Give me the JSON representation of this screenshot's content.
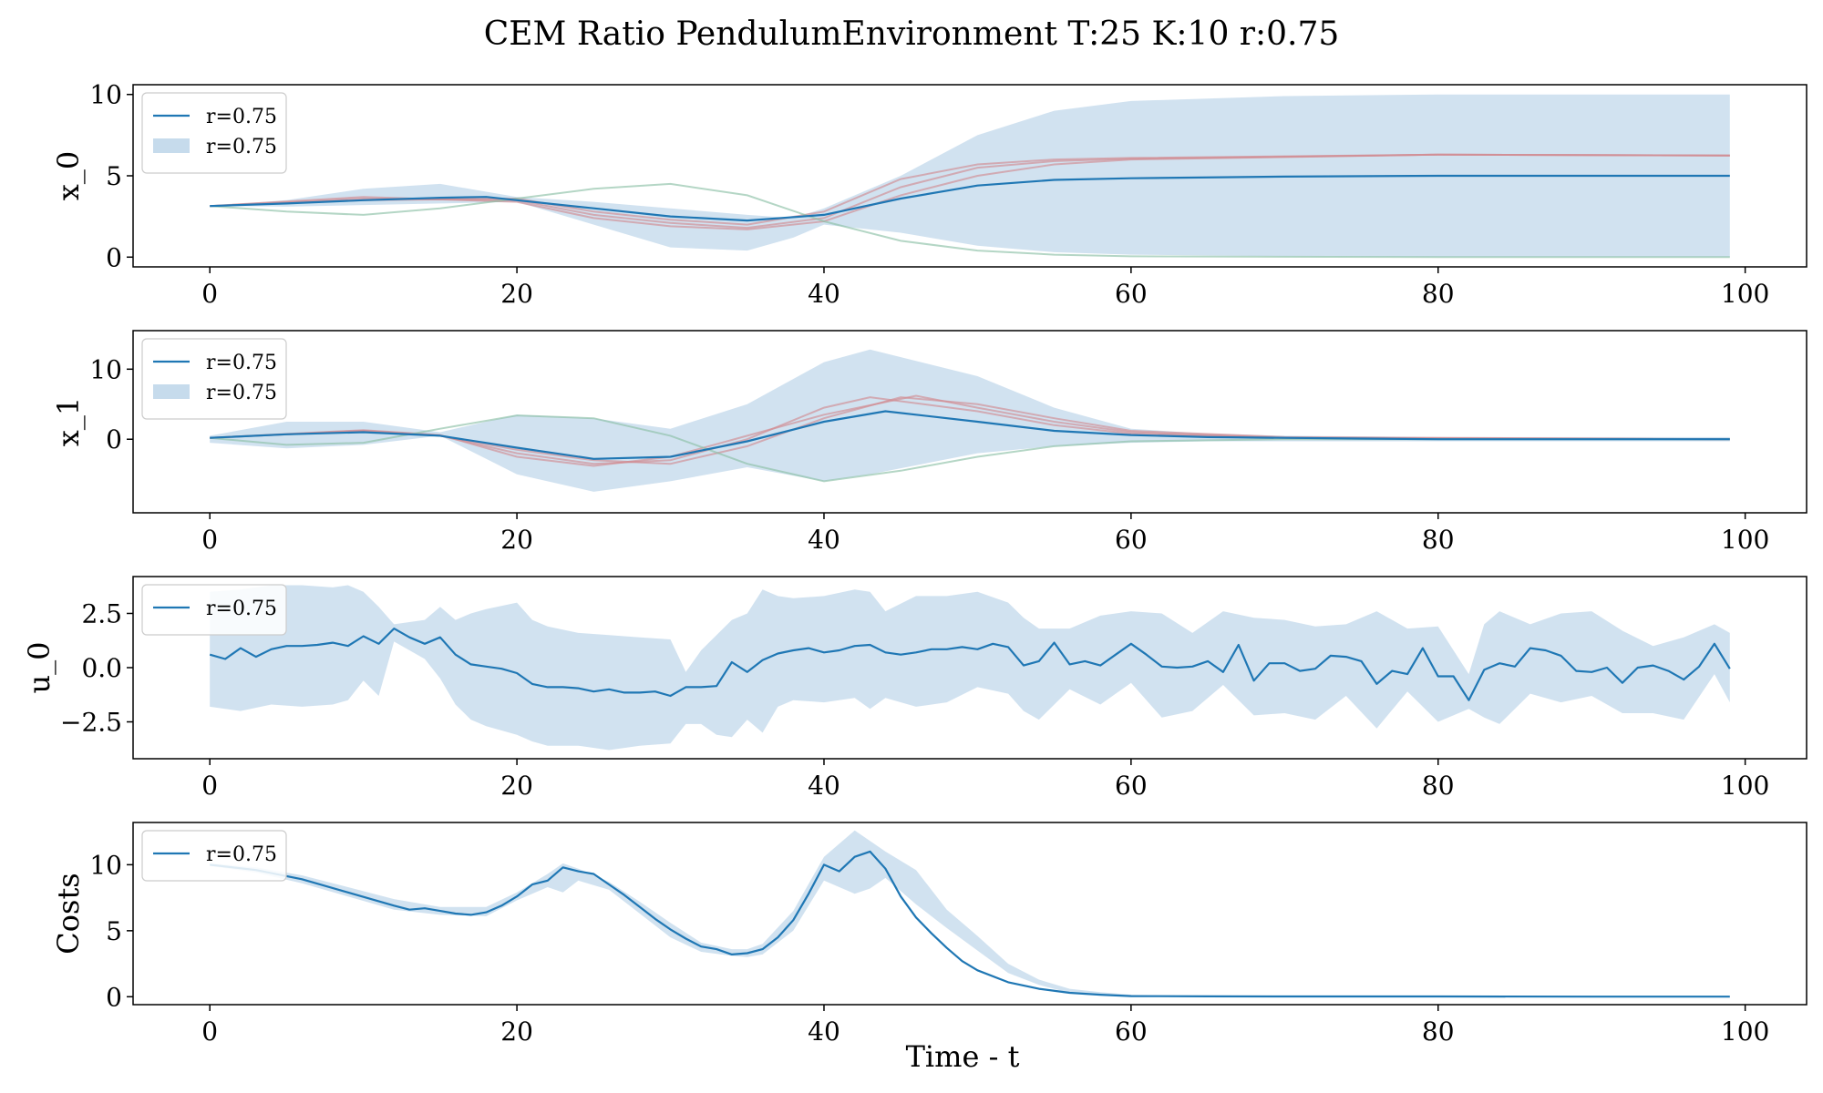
{
  "figure": {
    "title": "CEM Ratio PendulumEnvironment T:25 K:10 r:0.75",
    "xlabel": "Time - t"
  },
  "colors": {
    "mean_line": "#1f77b4",
    "band_fill": "#c6dbec",
    "sample_red": "#d18c92",
    "sample_green": "#8cc0a6",
    "axis": "#000000"
  },
  "chart_data": [
    {
      "type": "line",
      "ylabel": "x_0",
      "xlim": [
        -5,
        104
      ],
      "ylim": [
        -0.6,
        10.6
      ],
      "xticks": [
        0,
        20,
        40,
        60,
        80,
        100
      ],
      "yticks": [
        0,
        5,
        10
      ],
      "yticklabels": [
        "0",
        "5",
        "10"
      ],
      "legend": {
        "placement": "upper-left",
        "entries": [
          {
            "kind": "line",
            "label": "r=0.75"
          },
          {
            "kind": "band",
            "label": "r=0.75"
          }
        ]
      },
      "mean": {
        "name": "r=0.75",
        "x": [
          0,
          5,
          10,
          15,
          18,
          20,
          25,
          30,
          35,
          40,
          45,
          50,
          55,
          60,
          70,
          80,
          90,
          99
        ],
        "y": [
          3.14,
          3.3,
          3.5,
          3.65,
          3.7,
          3.5,
          3.0,
          2.5,
          2.25,
          2.6,
          3.6,
          4.4,
          4.75,
          4.85,
          4.95,
          5.0,
          5.0,
          5.0
        ]
      },
      "band": {
        "name": "r=0.75",
        "x": [
          0,
          5,
          10,
          15,
          20,
          25,
          30,
          35,
          38,
          40,
          45,
          50,
          55,
          60,
          70,
          80,
          90,
          99
        ],
        "upper": [
          3.14,
          3.5,
          4.2,
          4.5,
          3.7,
          3.4,
          3.0,
          2.6,
          2.4,
          3.0,
          5.0,
          7.5,
          9.0,
          9.6,
          9.9,
          10.0,
          10.0,
          10.0
        ],
        "lower": [
          3.14,
          3.1,
          3.2,
          3.3,
          3.4,
          2.0,
          0.6,
          0.4,
          1.2,
          2.0,
          1.5,
          0.7,
          0.3,
          0.15,
          0.05,
          0.0,
          0.0,
          0.0
        ]
      },
      "samples": [
        {
          "color": "red",
          "x": [
            0,
            10,
            20,
            25,
            30,
            35,
            40,
            45,
            50,
            55,
            60,
            80,
            99
          ],
          "y": [
            3.14,
            3.6,
            3.5,
            2.6,
            2.1,
            1.8,
            2.4,
            4.3,
            5.5,
            5.9,
            6.05,
            6.3,
            6.25
          ]
        },
        {
          "color": "red",
          "x": [
            0,
            10,
            20,
            25,
            30,
            35,
            40,
            45,
            50,
            55,
            60,
            80,
            99
          ],
          "y": [
            3.14,
            3.7,
            3.4,
            2.4,
            1.9,
            1.7,
            2.2,
            3.8,
            5.0,
            5.7,
            6.0,
            6.3,
            6.25
          ]
        },
        {
          "color": "red",
          "x": [
            0,
            10,
            20,
            25,
            30,
            35,
            40,
            45,
            50,
            55,
            60,
            80,
            99
          ],
          "y": [
            3.14,
            3.5,
            3.6,
            2.8,
            2.3,
            2.0,
            2.8,
            4.8,
            5.7,
            6.0,
            6.1,
            6.3,
            6.25
          ]
        },
        {
          "color": "green",
          "x": [
            0,
            5,
            10,
            15,
            20,
            25,
            30,
            35,
            40,
            45,
            50,
            55,
            60,
            80,
            99
          ],
          "y": [
            3.14,
            2.8,
            2.6,
            3.0,
            3.6,
            4.2,
            4.5,
            3.8,
            2.2,
            1.0,
            0.4,
            0.15,
            0.05,
            0.0,
            0.0
          ]
        }
      ]
    },
    {
      "type": "line",
      "ylabel": "x_1",
      "xlim": [
        -5,
        104
      ],
      "ylim": [
        -10.5,
        15.5
      ],
      "xticks": [
        0,
        20,
        40,
        60,
        80,
        100
      ],
      "yticks": [
        0,
        10
      ],
      "yticklabels": [
        "0",
        "10"
      ],
      "legend": {
        "placement": "upper-left",
        "entries": [
          {
            "kind": "line",
            "label": "r=0.75"
          },
          {
            "kind": "band",
            "label": "r=0.75"
          }
        ]
      },
      "mean": {
        "name": "r=0.75",
        "x": [
          0,
          5,
          10,
          15,
          20,
          25,
          30,
          35,
          40,
          44,
          50,
          55,
          60,
          65,
          70,
          75,
          80,
          85,
          90,
          95,
          99
        ],
        "y": [
          0.2,
          0.7,
          1.0,
          0.5,
          -1.2,
          -2.8,
          -2.5,
          -0.3,
          2.5,
          4.0,
          2.5,
          1.2,
          0.6,
          0.3,
          0.2,
          0.1,
          0.0,
          0.0,
          0.0,
          0.0,
          0.0
        ]
      },
      "band": {
        "name": "r=0.75",
        "x": [
          0,
          5,
          10,
          15,
          20,
          25,
          30,
          35,
          40,
          43,
          50,
          55,
          60,
          65,
          70,
          80,
          90,
          99
        ],
        "upper": [
          0.5,
          2.5,
          2.5,
          1.0,
          3.5,
          3.0,
          1.5,
          5.0,
          11.0,
          12.8,
          9.0,
          4.5,
          1.5,
          0.8,
          0.5,
          0.3,
          0.3,
          0.3
        ],
        "lower": [
          -0.5,
          -1.3,
          -0.8,
          0.5,
          -5.0,
          -7.5,
          -6.0,
          -4.0,
          -6.0,
          -5.0,
          -2.0,
          -1.0,
          -0.5,
          -0.3,
          -0.3,
          -0.3,
          -0.3,
          -0.3
        ]
      },
      "samples": [
        {
          "color": "red",
          "x": [
            0,
            10,
            15,
            20,
            25,
            30,
            35,
            40,
            43,
            50,
            55,
            60,
            70,
            99
          ],
          "y": [
            0.2,
            1.2,
            0.5,
            -2.0,
            -3.5,
            -3.0,
            0.0,
            4.5,
            6.0,
            4.0,
            2.0,
            0.8,
            0.2,
            0.0
          ]
        },
        {
          "color": "red",
          "x": [
            0,
            10,
            15,
            20,
            25,
            30,
            35,
            40,
            45,
            50,
            55,
            60,
            70,
            99
          ],
          "y": [
            0.2,
            1.2,
            0.5,
            -1.5,
            -3.0,
            -3.5,
            -1.0,
            3.0,
            6.0,
            5.0,
            3.0,
            1.2,
            0.3,
            0.0
          ]
        },
        {
          "color": "red",
          "x": [
            0,
            10,
            15,
            20,
            25,
            30,
            35,
            40,
            46,
            50,
            55,
            60,
            70,
            99
          ],
          "y": [
            0.2,
            1.3,
            0.6,
            -2.5,
            -3.8,
            -2.5,
            0.5,
            3.5,
            6.2,
            4.5,
            2.5,
            1.0,
            0.2,
            0.0
          ]
        },
        {
          "color": "green",
          "x": [
            0,
            5,
            10,
            15,
            20,
            25,
            30,
            35,
            40,
            45,
            50,
            55,
            60,
            70,
            99
          ],
          "y": [
            0.2,
            -0.8,
            -0.5,
            1.5,
            3.4,
            3.0,
            0.5,
            -3.5,
            -6.0,
            -4.5,
            -2.5,
            -1.0,
            -0.3,
            0.0,
            0.0
          ]
        }
      ]
    },
    {
      "type": "line",
      "ylabel": "u_0",
      "xlim": [
        -5,
        104
      ],
      "ylim": [
        -4.2,
        4.2
      ],
      "xticks": [
        0,
        20,
        40,
        60,
        80,
        100
      ],
      "yticks": [
        2.5,
        0.0,
        -2.5
      ],
      "yticklabels": [
        "2.5",
        "0.0",
        "−2.5"
      ],
      "legend": {
        "placement": "upper-left",
        "entries": [
          {
            "kind": "line",
            "label": "r=0.75"
          }
        ]
      },
      "mean": {
        "name": "r=0.75",
        "x": [
          0,
          1,
          2,
          3,
          4,
          5,
          6,
          7,
          8,
          9,
          10,
          11,
          12,
          13,
          14,
          15,
          16,
          17,
          18,
          19,
          20,
          21,
          22,
          23,
          24,
          25,
          26,
          27,
          28,
          29,
          30,
          31,
          32,
          33,
          34,
          35,
          36,
          37,
          38,
          39,
          40,
          41,
          42,
          43,
          44,
          45,
          46,
          47,
          48,
          49,
          50,
          51,
          52,
          53,
          54,
          55,
          56,
          57,
          58,
          59,
          60,
          61,
          62,
          63,
          64,
          65,
          66,
          67,
          68,
          69,
          70,
          71,
          72,
          73,
          74,
          75,
          76,
          77,
          78,
          79,
          80,
          81,
          82,
          83,
          84,
          85,
          86,
          87,
          88,
          89,
          90,
          91,
          92,
          93,
          94,
          95,
          96,
          97,
          98,
          99
        ],
        "y": [
          0.6,
          0.4,
          0.9,
          0.5,
          0.85,
          1.0,
          1.0,
          1.05,
          1.15,
          1.0,
          1.45,
          1.1,
          1.8,
          1.4,
          1.1,
          1.4,
          0.6,
          0.15,
          0.05,
          -0.05,
          -0.25,
          -0.75,
          -0.9,
          -0.9,
          -0.95,
          -1.1,
          -1.0,
          -1.15,
          -1.15,
          -1.1,
          -1.3,
          -0.9,
          -0.9,
          -0.85,
          0.25,
          -0.2,
          0.35,
          0.65,
          0.8,
          0.9,
          0.7,
          0.8,
          1.0,
          1.05,
          0.7,
          0.6,
          0.7,
          0.85,
          0.85,
          0.95,
          0.85,
          1.1,
          0.95,
          0.1,
          0.3,
          1.15,
          0.15,
          0.3,
          0.1,
          0.6,
          1.1,
          0.6,
          0.05,
          0.0,
          0.05,
          0.3,
          -0.2,
          1.05,
          -0.6,
          0.2,
          0.2,
          -0.15,
          -0.05,
          0.55,
          0.5,
          0.3,
          -0.75,
          -0.15,
          -0.3,
          0.9,
          -0.4,
          -0.4,
          -1.5,
          -0.1,
          0.2,
          0.05,
          0.9,
          0.8,
          0.55,
          -0.15,
          -0.2,
          0.0,
          -0.7,
          0.0,
          0.1,
          -0.15,
          -0.55,
          0.05,
          1.1,
          -0.05
        ]
      },
      "band": {
        "name": "r=0.75",
        "x": [
          0,
          2,
          4,
          6,
          8,
          9,
          10,
          11,
          12,
          14,
          15,
          16,
          17,
          18,
          20,
          21,
          22,
          24,
          26,
          28,
          30,
          31,
          32,
          33,
          34,
          35,
          36,
          37,
          38,
          40,
          42,
          43,
          44,
          46,
          48,
          50,
          52,
          53,
          54,
          56,
          58,
          60,
          62,
          64,
          66,
          68,
          70,
          72,
          74,
          76,
          78,
          80,
          82,
          83,
          84,
          86,
          88,
          90,
          92,
          94,
          96,
          98,
          99
        ],
        "upper": [
          3.5,
          3.6,
          3.8,
          3.8,
          3.7,
          3.8,
          3.5,
          2.8,
          2.0,
          2.2,
          2.8,
          2.2,
          2.5,
          2.7,
          3.0,
          2.2,
          1.9,
          1.6,
          1.5,
          1.4,
          1.3,
          -0.2,
          0.8,
          1.5,
          2.2,
          2.5,
          3.6,
          3.3,
          3.2,
          3.3,
          3.6,
          3.5,
          2.6,
          3.3,
          3.3,
          3.5,
          3.0,
          2.3,
          1.8,
          1.8,
          2.4,
          2.6,
          2.5,
          1.6,
          2.6,
          2.3,
          2.2,
          1.9,
          2.0,
          2.6,
          1.8,
          1.9,
          -0.3,
          2.0,
          2.6,
          2.0,
          2.5,
          2.6,
          1.7,
          1.0,
          1.4,
          2.0,
          1.6
        ],
        "lower": [
          -1.8,
          -2.0,
          -1.7,
          -1.8,
          -1.7,
          -1.5,
          -0.6,
          -1.3,
          1.2,
          0.4,
          -0.5,
          -1.7,
          -2.4,
          -2.7,
          -3.1,
          -3.4,
          -3.6,
          -3.6,
          -3.8,
          -3.6,
          -3.5,
          -2.6,
          -2.6,
          -3.1,
          -3.2,
          -2.4,
          -3.0,
          -1.8,
          -1.5,
          -1.6,
          -1.4,
          -1.9,
          -1.4,
          -1.8,
          -1.6,
          -0.9,
          -1.2,
          -2.0,
          -2.4,
          -1.0,
          -1.7,
          -0.7,
          -2.3,
          -2.0,
          -0.8,
          -2.2,
          -2.1,
          -2.4,
          -1.3,
          -2.8,
          -1.1,
          -2.5,
          -1.9,
          -2.3,
          -2.6,
          -1.2,
          -1.6,
          -1.3,
          -2.1,
          -2.1,
          -2.4,
          -0.3,
          -1.6
        ]
      }
    },
    {
      "type": "line",
      "ylabel": "Costs",
      "xlim": [
        -5,
        104
      ],
      "ylim": [
        -0.6,
        13.2
      ],
      "xticks": [
        0,
        20,
        40,
        60,
        80,
        100
      ],
      "yticks": [
        0,
        5,
        10
      ],
      "yticklabels": [
        "0",
        "5",
        "10"
      ],
      "legend": {
        "placement": "upper-left",
        "entries": [
          {
            "kind": "line",
            "label": "r=0.75"
          }
        ]
      },
      "mean": {
        "name": "r=0.75",
        "x": [
          0,
          3,
          6,
          9,
          12,
          13,
          14,
          15,
          16,
          17,
          18,
          19,
          20,
          21,
          22,
          23,
          24,
          25,
          26,
          27,
          28,
          29,
          30,
          31,
          32,
          33,
          34,
          35,
          36,
          37,
          38,
          39,
          40,
          41,
          42,
          43,
          44,
          45,
          46,
          47,
          48,
          49,
          50,
          52,
          54,
          56,
          58,
          60,
          65,
          70,
          80,
          90,
          99
        ],
        "y": [
          10.0,
          9.6,
          8.9,
          7.9,
          6.9,
          6.6,
          6.7,
          6.5,
          6.3,
          6.2,
          6.4,
          6.9,
          7.6,
          8.5,
          8.8,
          9.8,
          9.5,
          9.3,
          8.5,
          7.7,
          6.8,
          5.9,
          5.1,
          4.4,
          3.8,
          3.6,
          3.2,
          3.3,
          3.6,
          4.5,
          5.8,
          7.8,
          10.0,
          9.5,
          10.6,
          11.0,
          9.7,
          7.6,
          6.0,
          4.8,
          3.7,
          2.7,
          2.0,
          1.1,
          0.6,
          0.3,
          0.15,
          0.05,
          0.03,
          0.02,
          0.02,
          0.01,
          0.01
        ]
      },
      "band": {
        "name": "r=0.75",
        "x": [
          0,
          3,
          6,
          9,
          12,
          15,
          18,
          20,
          22,
          23,
          24,
          26,
          28,
          30,
          32,
          34,
          35,
          36,
          38,
          40,
          42,
          43,
          44,
          46,
          48,
          50,
          52,
          54,
          56,
          58,
          60,
          65,
          70,
          80,
          99
        ],
        "upper": [
          10.1,
          9.8,
          9.2,
          8.3,
          7.4,
          6.8,
          6.8,
          7.9,
          9.3,
          10.1,
          9.7,
          8.7,
          7.2,
          5.6,
          4.1,
          3.6,
          3.6,
          4.0,
          6.5,
          10.6,
          12.6,
          11.8,
          11.0,
          9.6,
          6.6,
          4.6,
          2.5,
          1.3,
          0.6,
          0.35,
          0.15,
          0.05,
          0.03,
          0.02,
          0.02
        ],
        "lower": [
          9.9,
          9.4,
          8.6,
          7.6,
          6.6,
          6.2,
          6.1,
          7.3,
          8.3,
          7.9,
          8.8,
          8.1,
          6.3,
          4.5,
          3.4,
          3.1,
          3.0,
          3.2,
          5.0,
          8.8,
          7.8,
          8.2,
          9.0,
          7.0,
          5.2,
          3.5,
          1.8,
          0.9,
          0.3,
          0.15,
          0.05,
          0.02,
          0.01,
          0.01,
          0.01
        ]
      }
    }
  ]
}
